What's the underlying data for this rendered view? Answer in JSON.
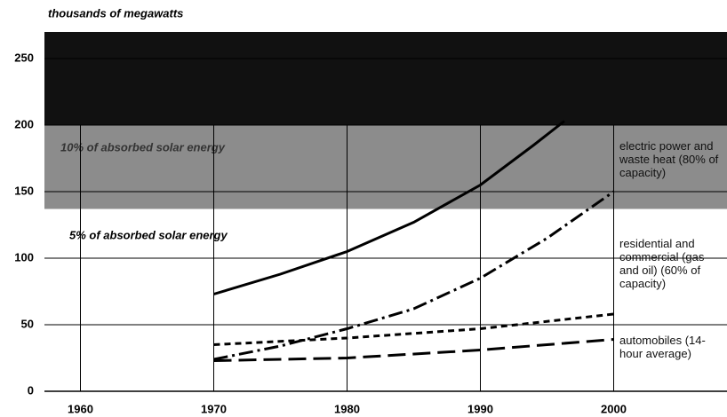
{
  "chart_data": {
    "type": "line",
    "y_label": "thousands of megawatts",
    "xlim": [
      1957.3,
      2008.5
    ],
    "xticks": [
      1960,
      1970,
      1980,
      1990,
      2000
    ],
    "ylim": [
      0,
      270
    ],
    "yticks": [
      0,
      50,
      100,
      150,
      200,
      250
    ],
    "grid": true,
    "regions": [
      {
        "from": 200,
        "to": 270,
        "color": "#111111"
      },
      {
        "from": 137,
        "to": 200,
        "color": "#8c8c8c",
        "label": "10% of absorbed solar energy"
      }
    ],
    "annotations": [
      "5% of absorbed solar energy"
    ],
    "series": [
      {
        "color": "#000000",
        "dash": "solid",
        "x": [
          1970,
          1975,
          1980,
          1985,
          1990,
          1994,
          1996.3
        ],
        "values": [
          73,
          88,
          105,
          127,
          155,
          185,
          203
        ]
      },
      {
        "name": "electric power and waste heat (80% of capacity)",
        "color": "#000000",
        "dash": "dashdot",
        "x": [
          1970,
          1975,
          1980,
          1985,
          1990,
          1995,
          2000
        ],
        "values": [
          24,
          34,
          47,
          62,
          85,
          115,
          150
        ]
      },
      {
        "name": "residential and commercial (gas and oil) (60% of capacity)",
        "color": "#000000",
        "dash": "dash",
        "x": [
          1970,
          1980,
          1990,
          2000
        ],
        "values": [
          35,
          40,
          47,
          58
        ]
      },
      {
        "name": "automobiles (14-hour average)",
        "color": "#000000",
        "dash": "longdash",
        "x": [
          1970,
          1980,
          1990,
          2000
        ],
        "values": [
          23,
          25,
          31,
          39
        ]
      }
    ]
  }
}
